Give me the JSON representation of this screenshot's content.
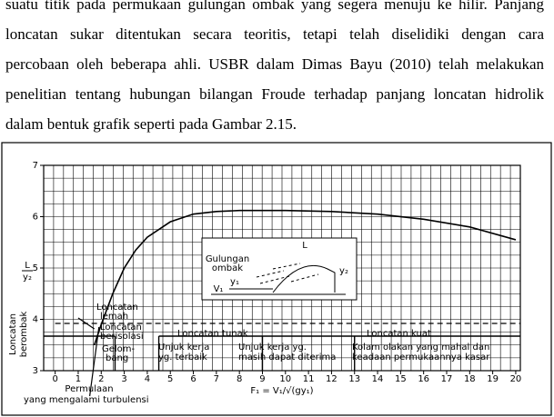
{
  "paragraph": {
    "lines": [
      "suatu titik pada permukaan gulungan ombak yang segera menuju ke hilir. Panjang",
      "loncatan sukar ditentukan secara teoritis, tetapi telah diselidiki dengan cara",
      "percobaan oleh beberapa ahli. USBR dalam Dimas Bayu (2010) telah melakukan",
      "penelitian tentang hubungan bilangan Froude terhadap panjang loncatan hidrolik",
      "dalam bentuk grafik seperti pada Gambar 2.15."
    ]
  },
  "chart_data": {
    "type": "line",
    "y_label": [
      "L",
      "y₂"
    ],
    "x_label": "F₁ = V₁/√(gy₁)",
    "x": [
      1.7,
      2,
      2.5,
      3,
      3.5,
      4,
      5,
      6,
      7,
      8,
      10,
      12,
      14,
      16,
      18,
      20
    ],
    "series": [
      {
        "color": "#000000",
        "values": [
          3.5,
          3.9,
          4.5,
          5.0,
          5.35,
          5.6,
          5.9,
          6.05,
          6.1,
          6.12,
          6.12,
          6.1,
          6.05,
          5.95,
          5.8,
          5.55
        ]
      }
    ],
    "xlim": [
      -0.5,
      20.2
    ],
    "ylim": [
      3,
      7
    ],
    "xticks": [
      0,
      1,
      2,
      3,
      4,
      5,
      6,
      7,
      8,
      9,
      10,
      11,
      12,
      13,
      14,
      15,
      16,
      17,
      18,
      19,
      20
    ],
    "yticks": [
      3,
      4,
      5,
      6,
      7
    ],
    "grid": true,
    "annotations": {
      "berombak": [
        "Loncatan",
        "berombak"
      ],
      "lemah": [
        "Loncatan",
        "lemah"
      ],
      "berisolasi": [
        "Loncatan",
        "berisolasi"
      ],
      "gelombang": [
        "Gelom-",
        "bang"
      ],
      "tunak": "Loncatan tunak",
      "kuat": "Loncatan kuat",
      "terbaik": [
        "Unjuk kerja",
        "yg. terbaik"
      ],
      "diterima": [
        "Unjuk kerja yg.",
        "masih dapat diterima"
      ],
      "kolam": [
        "Kolam olakan yang mahal dan",
        "keadaan permukaannya kasar"
      ],
      "permulaan": [
        "Permulaan",
        "yang mengalami turbulensi"
      ],
      "inset": {
        "gulungan": [
          "Gulungan",
          "ombak"
        ],
        "L": "L",
        "v1": "V₁",
        "y1": "y₁",
        "y2": "y₂"
      }
    }
  }
}
